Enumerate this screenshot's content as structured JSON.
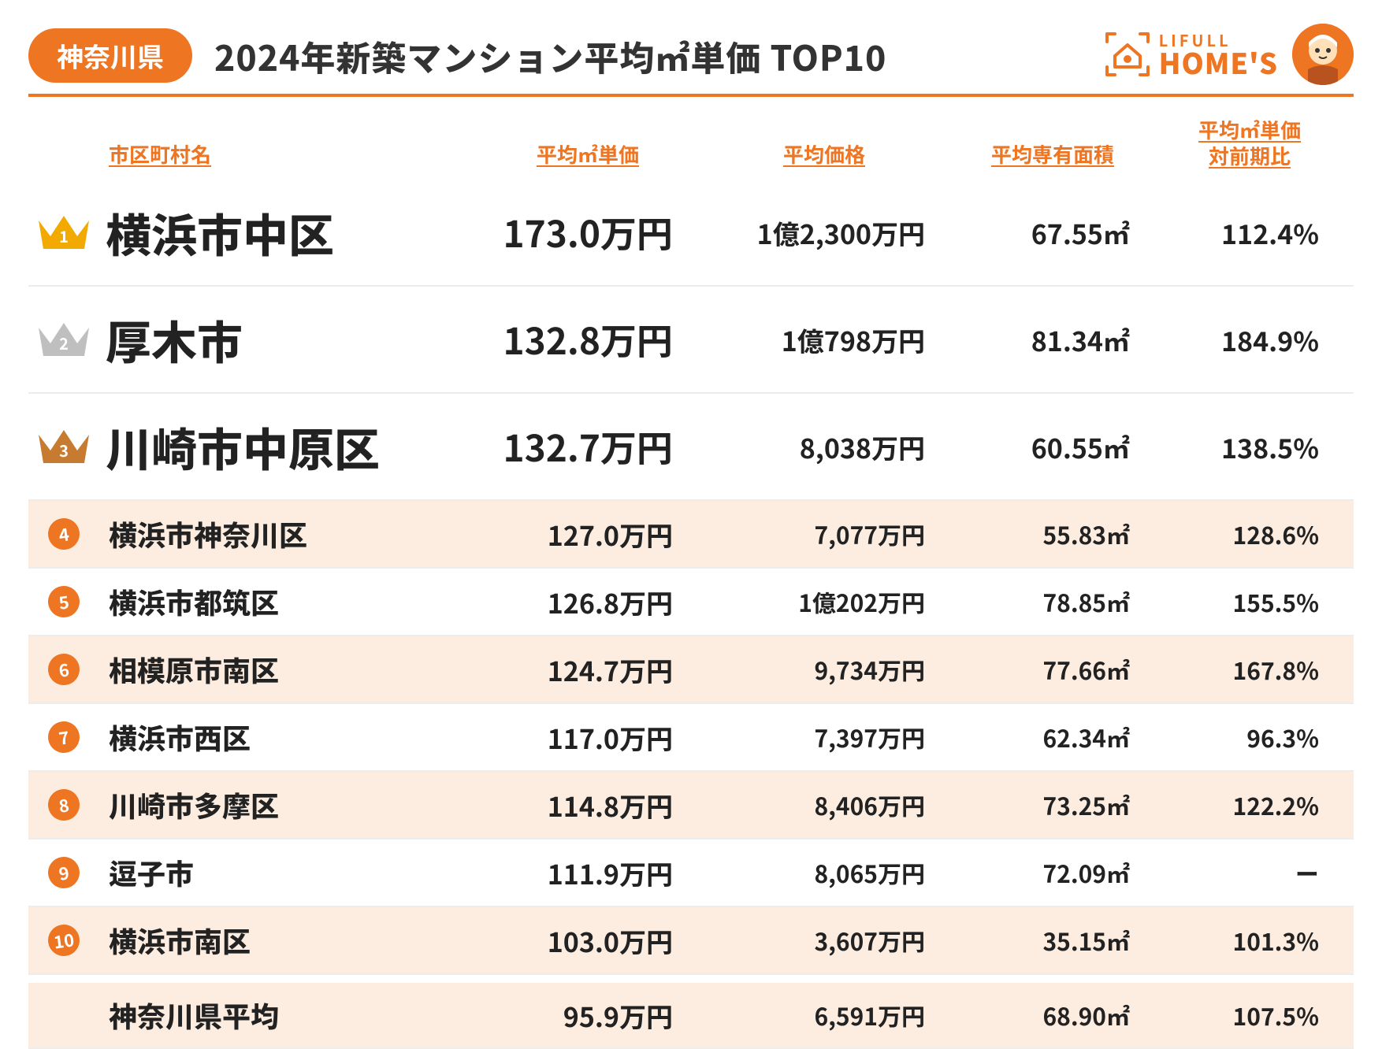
{
  "header": {
    "prefecture": "神奈川県",
    "title": "2024年新築マンション平均㎡単価 TOP10",
    "logo_lifull": "LIFULL",
    "logo_homes": "HOME'S"
  },
  "columns": {
    "name": "市区町村名",
    "price_per_m2": "平均㎡単価",
    "avg_price": "平均価格",
    "avg_area": "平均専有面積",
    "yoy_line1": "平均㎡単価",
    "yoy_line2": "対前期比"
  },
  "crown_colors": {
    "1": "#f2a900",
    "2": "#bfbfbf",
    "3": "#c77b30"
  },
  "rows": [
    {
      "rank": 1,
      "name": "横浜市中区",
      "price_per_m2": "173.0万円",
      "avg_price": "1億2,300万円",
      "avg_area": "67.55㎡",
      "yoy": "112.4%",
      "top3": true,
      "zebra": false
    },
    {
      "rank": 2,
      "name": "厚木市",
      "price_per_m2": "132.8万円",
      "avg_price": "1億798万円",
      "avg_area": "81.34㎡",
      "yoy": "184.9%",
      "top3": true,
      "zebra": false
    },
    {
      "rank": 3,
      "name": "川崎市中原区",
      "price_per_m2": "132.7万円",
      "avg_price": "8,038万円",
      "avg_area": "60.55㎡",
      "yoy": "138.5%",
      "top3": true,
      "zebra": false
    },
    {
      "rank": 4,
      "name": "横浜市神奈川区",
      "price_per_m2": "127.0万円",
      "avg_price": "7,077万円",
      "avg_area": "55.83㎡",
      "yoy": "128.6%",
      "top3": false,
      "zebra": true
    },
    {
      "rank": 5,
      "name": "横浜市都筑区",
      "price_per_m2": "126.8万円",
      "avg_price": "1億202万円",
      "avg_area": "78.85㎡",
      "yoy": "155.5%",
      "top3": false,
      "zebra": false
    },
    {
      "rank": 6,
      "name": "相模原市南区",
      "price_per_m2": "124.7万円",
      "avg_price": "9,734万円",
      "avg_area": "77.66㎡",
      "yoy": "167.8%",
      "top3": false,
      "zebra": true
    },
    {
      "rank": 7,
      "name": "横浜市西区",
      "price_per_m2": "117.0万円",
      "avg_price": "7,397万円",
      "avg_area": "62.34㎡",
      "yoy": "96.3%",
      "top3": false,
      "zebra": false
    },
    {
      "rank": 8,
      "name": "川崎市多摩区",
      "price_per_m2": "114.8万円",
      "avg_price": "8,406万円",
      "avg_area": "73.25㎡",
      "yoy": "122.2%",
      "top3": false,
      "zebra": true
    },
    {
      "rank": 9,
      "name": "逗子市",
      "price_per_m2": "111.9万円",
      "avg_price": "8,065万円",
      "avg_area": "72.09㎡",
      "yoy": "ー",
      "top3": false,
      "zebra": false
    },
    {
      "rank": 10,
      "name": "横浜市南区",
      "price_per_m2": "103.0万円",
      "avg_price": "3,607万円",
      "avg_area": "35.15㎡",
      "yoy": "101.3%",
      "top3": false,
      "zebra": true
    }
  ],
  "average": {
    "name": "神奈川県平均",
    "price_per_m2": "95.9万円",
    "avg_price": "6,591万円",
    "avg_area": "68.90㎡",
    "yoy": "107.5%"
  },
  "colors": {
    "brand": "#ee7521",
    "zebra_bg": "#fdece0",
    "text": "#222222"
  }
}
